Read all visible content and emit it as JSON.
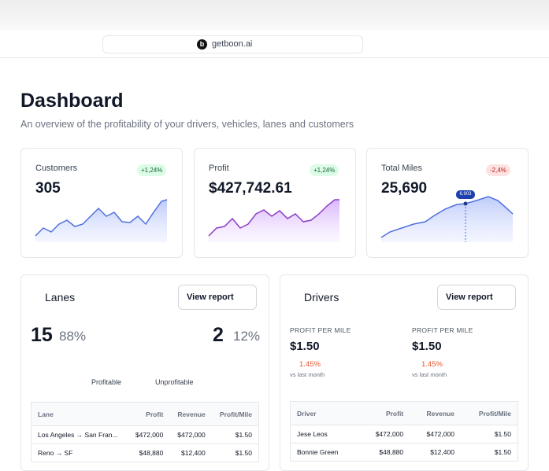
{
  "browser": {
    "favicon": "b",
    "url": "getboon.ai"
  },
  "header": {
    "title": "Dashboard",
    "subtitle": "An overview of the profitability of your drivers, vehicles, lanes and customers"
  },
  "kpis": [
    {
      "label": "Customers",
      "value": "305",
      "change": "+1,24%"
    },
    {
      "label": "Profit",
      "value": "$427,742.61",
      "change": "+1,24%"
    },
    {
      "label": "Total Miles",
      "value": "25,690",
      "change": "-2,4%",
      "tooltip": "6,903"
    }
  ],
  "lanes": {
    "title": "Lanes",
    "button": "View report",
    "profitable_count": "15",
    "profitable_pct": "88%",
    "unprofitable_count": "2",
    "unprofitable_pct": "12%",
    "legend": [
      "Profitable",
      "Unprofitable"
    ],
    "table": {
      "columns": [
        "Lane",
        "Profit",
        "Revenue",
        "Profit/Mile"
      ],
      "rows": [
        [
          "Los Angeles → San Fran...",
          "$472,000",
          "$472,000",
          "$1.50"
        ],
        [
          "Reno → SF",
          "$48,880",
          "$12,400",
          "$1.50"
        ]
      ]
    }
  },
  "drivers": {
    "title": "Drivers",
    "button": "View report",
    "metrics": [
      {
        "label": "PROFIT PER MILE",
        "value": "$1.50",
        "change": "1.45%",
        "note": "vs last month"
      },
      {
        "label": "PROFIT PER MILE",
        "value": "$1.50",
        "change": "1.45%",
        "note": "vs last month"
      }
    ],
    "table": {
      "columns": [
        "Driver",
        "Profit",
        "Revenue",
        "Profit/Mile"
      ],
      "rows": [
        [
          "Jese Leos",
          "$472,000",
          "$472,000",
          "$1.50"
        ],
        [
          "Bonnie Green",
          "$48,880",
          "$12,400",
          "$1.50"
        ]
      ]
    }
  }
}
